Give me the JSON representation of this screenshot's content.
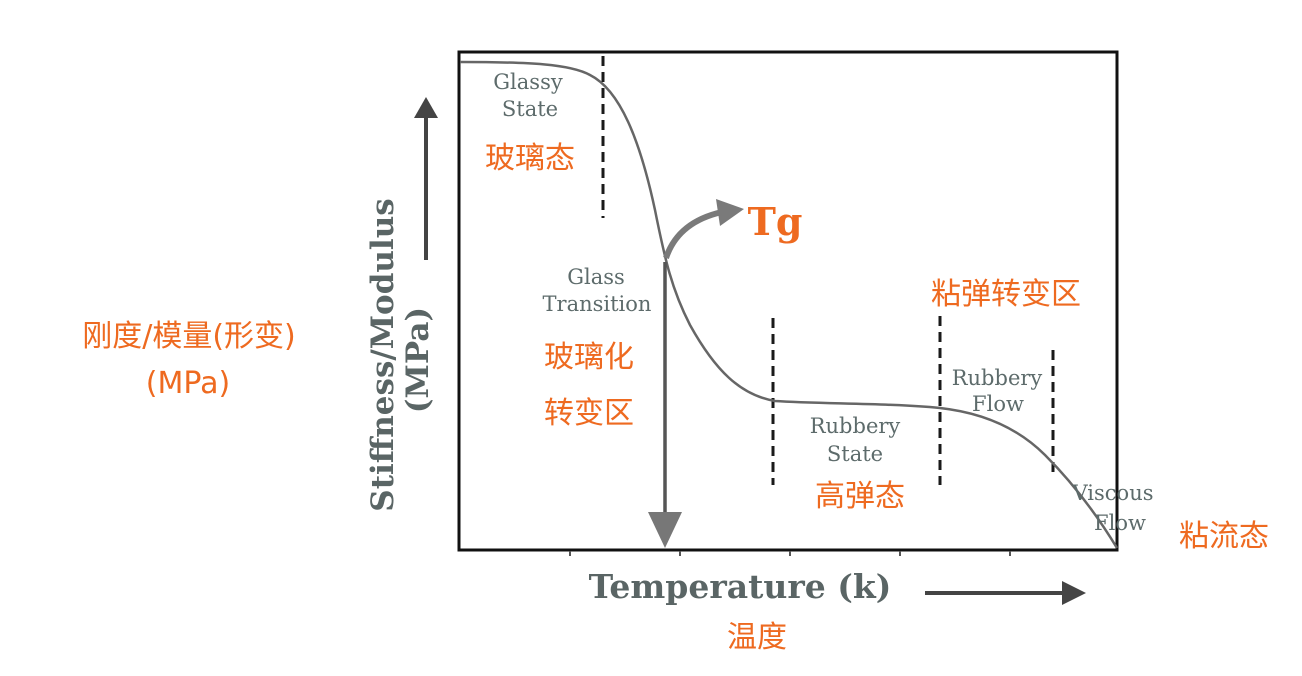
{
  "axes": {
    "ylabel": "Stiffness/Modulus",
    "yunit": "(MPa)",
    "xlabel": "Temperature (k)"
  },
  "tg_label": "Tg",
  "regions": {
    "glassy_state": {
      "en": [
        "Glassy",
        "State"
      ],
      "zh": "玻璃态"
    },
    "glass_transition": {
      "en": [
        "Glass",
        "Transition"
      ],
      "zh": [
        "玻璃化",
        "转变区"
      ]
    },
    "rubbery_state": {
      "en": [
        "Rubbery",
        "State"
      ],
      "zh": "高弹态"
    },
    "rubbery_flow": {
      "en": [
        "Rubbery",
        "Flow"
      ],
      "zh": "粘弹转变区"
    },
    "viscous_flow": {
      "en": [
        "Viscous",
        "Flow"
      ],
      "zh": "粘流态"
    }
  },
  "zh_axes": {
    "ylabel": [
      "刚度/模量(形变)",
      "(MPa)"
    ],
    "xlabel": "温度"
  },
  "colors": {
    "annotation": "#ee6a20",
    "label_text": "#5d6b6b",
    "curve": "#666666",
    "frame": "#111111"
  },
  "icons": [
    "y-axis-up-arrow-icon",
    "x-axis-right-arrow-icon",
    "tg-curved-arrow-icon",
    "tg-down-arrow-icon"
  ]
}
